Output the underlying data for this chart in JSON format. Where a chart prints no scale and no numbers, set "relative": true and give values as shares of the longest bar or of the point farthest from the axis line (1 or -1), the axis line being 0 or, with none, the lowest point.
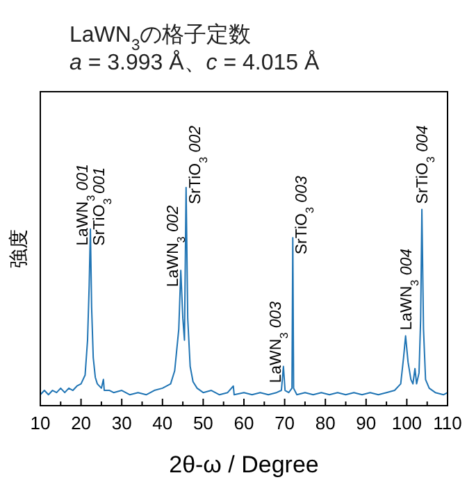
{
  "chart_data": {
    "type": "line",
    "title": "LaWN$_{3}$の格子定数",
    "subtitle": "*a* = 3.993 Å、*c* = 4.015 Å",
    "xlabel": "2θ-ω / Degree",
    "ylabel": "強度",
    "relative": true,
    "xlim": [
      10,
      110
    ],
    "xticks": [
      10,
      20,
      30,
      40,
      50,
      60,
      70,
      80,
      90,
      100,
      110
    ],
    "tick_labels": "x",
    "marker": "none",
    "line_style": "solid",
    "series": [
      {
        "color": "#1f74b4",
        "x": [
          10,
          11,
          12,
          13,
          14,
          15,
          16,
          17,
          18,
          19,
          20,
          21,
          21.6,
          22.0,
          22.3,
          22.6,
          23.0,
          23.5,
          24,
          25,
          25.5,
          25.7,
          27,
          28,
          30,
          32,
          34,
          36,
          38,
          40,
          42,
          43,
          44,
          44.5,
          45.0,
          45.4,
          45.8,
          46.2,
          46.8,
          47.5,
          48.5,
          50,
          52,
          54,
          56,
          57.4,
          57.6,
          60,
          62,
          64,
          66,
          68,
          69.2,
          69.7,
          70.1,
          71.0,
          71.8,
          72.0,
          72.2,
          73,
          75,
          77,
          79,
          81,
          83,
          85,
          87,
          89,
          91,
          93,
          95,
          97,
          98.5,
          99.2,
          99.7,
          100.3,
          101,
          101.5,
          102,
          102.4,
          103.0,
          103.4,
          103.7,
          104.1,
          104.6,
          105.5,
          107,
          109,
          110
        ],
        "values": [
          0.05,
          0.07,
          0.05,
          0.07,
          0.06,
          0.08,
          0.06,
          0.08,
          0.07,
          0.09,
          0.1,
          0.14,
          0.3,
          0.55,
          0.81,
          0.45,
          0.22,
          0.13,
          0.1,
          0.08,
          0.12,
          0.07,
          0.07,
          0.06,
          0.07,
          0.05,
          0.06,
          0.05,
          0.07,
          0.08,
          0.1,
          0.16,
          0.35,
          0.62,
          0.4,
          0.3,
          1.0,
          0.4,
          0.18,
          0.11,
          0.08,
          0.06,
          0.07,
          0.05,
          0.06,
          0.09,
          0.05,
          0.06,
          0.05,
          0.06,
          0.05,
          0.06,
          0.07,
          0.18,
          0.07,
          0.06,
          0.08,
          0.77,
          0.08,
          0.05,
          0.06,
          0.05,
          0.06,
          0.05,
          0.06,
          0.05,
          0.06,
          0.05,
          0.06,
          0.05,
          0.06,
          0.07,
          0.1,
          0.22,
          0.32,
          0.2,
          0.12,
          0.1,
          0.17,
          0.1,
          0.15,
          0.4,
          0.9,
          0.35,
          0.12,
          0.08,
          0.06,
          0.05,
          0.06
        ]
      }
    ],
    "annotations": [
      {
        "text": "LaWN$_{3}$ *001*",
        "x": 22.3,
        "y": 0.81
      },
      {
        "text": "SrTiO$_{3}$ *001*",
        "x": 22.3,
        "y": 0.81
      },
      {
        "text": "LaWN$_{3}$ *002*",
        "x": 44.5,
        "y": 0.62
      },
      {
        "text": "SrTiO$_{3}$ *002*",
        "x": 45.8,
        "y": 1.0
      },
      {
        "text": "LaWN$_{3}$ *003*",
        "x": 69.7,
        "y": 0.18
      },
      {
        "text": "SrTiO$_{3}$ *003*",
        "x": 72.0,
        "y": 0.77
      },
      {
        "text": "LaWN$_{3}$ *004*",
        "x": 99.7,
        "y": 0.32
      },
      {
        "text": "SrTiO$_{3}$ *004*",
        "x": 103.7,
        "y": 0.9
      }
    ]
  }
}
